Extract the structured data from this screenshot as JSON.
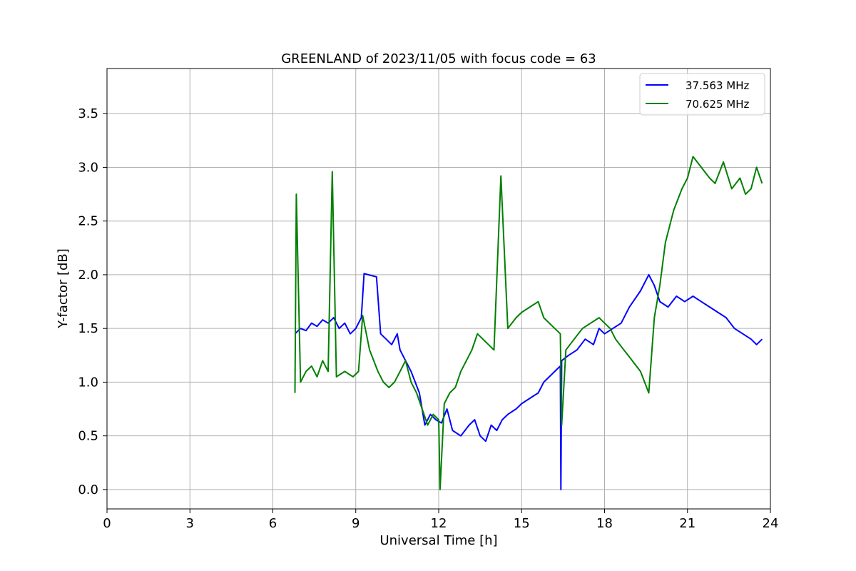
{
  "chart_data": {
    "type": "line",
    "title": "GREENLAND of 2023/11/05 with focus code = 63",
    "xlabel": "Universal Time [h]",
    "ylabel": "Y-factor [dB]",
    "xlim": [
      0,
      24
    ],
    "ylim": [
      -0.18,
      3.92
    ],
    "xticks": [
      0,
      3,
      6,
      9,
      12,
      15,
      18,
      21,
      24
    ],
    "yticks": [
      0.0,
      0.5,
      1.0,
      1.5,
      2.0,
      2.5,
      3.0,
      3.5
    ],
    "xtick_labels": [
      "0",
      "3",
      "6",
      "9",
      "12",
      "15",
      "18",
      "21",
      "24"
    ],
    "ytick_labels": [
      "0.0",
      "0.5",
      "1.0",
      "1.5",
      "2.0",
      "2.5",
      "3.0",
      "3.5"
    ],
    "grid": true,
    "legend_position": "top-right",
    "series": [
      {
        "name": "37.563 MHz",
        "color": "#0000ff",
        "x": [
          6.8,
          7.0,
          7.2,
          7.4,
          7.6,
          7.8,
          8.0,
          8.2,
          8.4,
          8.6,
          8.8,
          9.0,
          9.2,
          9.3,
          9.75,
          9.9,
          10.1,
          10.3,
          10.5,
          10.6,
          10.8,
          11.0,
          11.3,
          11.5,
          11.7,
          11.9,
          12.1,
          12.3,
          12.5,
          12.8,
          13.1,
          13.3,
          13.5,
          13.7,
          13.9,
          14.1,
          14.3,
          14.5,
          14.8,
          15.0,
          15.3,
          15.6,
          15.8,
          16.0,
          16.2,
          16.4,
          16.42,
          16.45,
          16.7,
          17.0,
          17.3,
          17.6,
          17.8,
          18.0,
          18.3,
          18.6,
          18.9,
          19.3,
          19.6,
          19.8,
          20.0,
          20.3,
          20.6,
          20.9,
          21.2,
          21.5,
          21.8,
          22.1,
          22.4,
          22.7,
          23.0,
          23.3,
          23.5,
          23.7
        ],
        "y": [
          1.45,
          1.5,
          1.48,
          1.55,
          1.52,
          1.58,
          1.55,
          1.6,
          1.5,
          1.55,
          1.45,
          1.5,
          1.6,
          2.01,
          1.98,
          1.45,
          1.4,
          1.35,
          1.45,
          1.3,
          1.2,
          1.1,
          0.9,
          0.6,
          0.7,
          0.65,
          0.62,
          0.75,
          0.55,
          0.5,
          0.6,
          0.65,
          0.5,
          0.45,
          0.6,
          0.55,
          0.65,
          0.7,
          0.75,
          0.8,
          0.85,
          0.9,
          1.0,
          1.05,
          1.1,
          1.15,
          0.0,
          1.2,
          1.25,
          1.3,
          1.4,
          1.35,
          1.5,
          1.45,
          1.5,
          1.55,
          1.7,
          1.85,
          2.0,
          1.9,
          1.75,
          1.7,
          1.8,
          1.75,
          1.8,
          1.75,
          1.7,
          1.65,
          1.6,
          1.5,
          1.45,
          1.4,
          1.35,
          1.4
        ]
      },
      {
        "name": "70.625 MHz",
        "color": "#008000",
        "x": [
          6.8,
          6.85,
          7.0,
          7.2,
          7.4,
          7.6,
          7.8,
          8.0,
          8.15,
          8.3,
          8.6,
          8.9,
          9.1,
          9.25,
          9.5,
          9.8,
          10.0,
          10.2,
          10.4,
          10.6,
          10.8,
          11.0,
          11.2,
          11.4,
          11.6,
          11.8,
          12.0,
          12.05,
          12.2,
          12.4,
          12.6,
          12.8,
          13.0,
          13.2,
          13.4,
          13.6,
          13.8,
          14.0,
          14.25,
          14.5,
          14.8,
          15.0,
          15.3,
          15.6,
          15.8,
          16.0,
          16.2,
          16.4,
          16.45,
          16.6,
          16.9,
          17.2,
          17.5,
          17.8,
          18.0,
          18.2,
          18.4,
          18.7,
          19.0,
          19.3,
          19.6,
          19.8,
          20.0,
          20.2,
          20.5,
          20.8,
          21.0,
          21.2,
          21.5,
          21.8,
          22.0,
          22.3,
          22.6,
          22.9,
          23.1,
          23.3,
          23.5,
          23.7
        ],
        "y": [
          0.9,
          2.75,
          1.0,
          1.1,
          1.15,
          1.05,
          1.2,
          1.1,
          2.96,
          1.05,
          1.1,
          1.05,
          1.1,
          1.62,
          1.3,
          1.1,
          1.0,
          0.95,
          1.0,
          1.1,
          1.2,
          1.0,
          0.9,
          0.75,
          0.6,
          0.7,
          0.65,
          0.0,
          0.8,
          0.9,
          0.95,
          1.1,
          1.2,
          1.3,
          1.45,
          1.4,
          1.35,
          1.3,
          2.92,
          1.5,
          1.6,
          1.65,
          1.7,
          1.75,
          1.6,
          1.55,
          1.5,
          1.45,
          0.6,
          1.3,
          1.4,
          1.5,
          1.55,
          1.6,
          1.55,
          1.5,
          1.4,
          1.3,
          1.2,
          1.1,
          0.9,
          1.6,
          1.9,
          2.3,
          2.6,
          2.8,
          2.9,
          3.1,
          3.0,
          2.9,
          2.85,
          3.05,
          2.8,
          2.9,
          2.75,
          2.8,
          3.0,
          2.85
        ]
      }
    ]
  }
}
